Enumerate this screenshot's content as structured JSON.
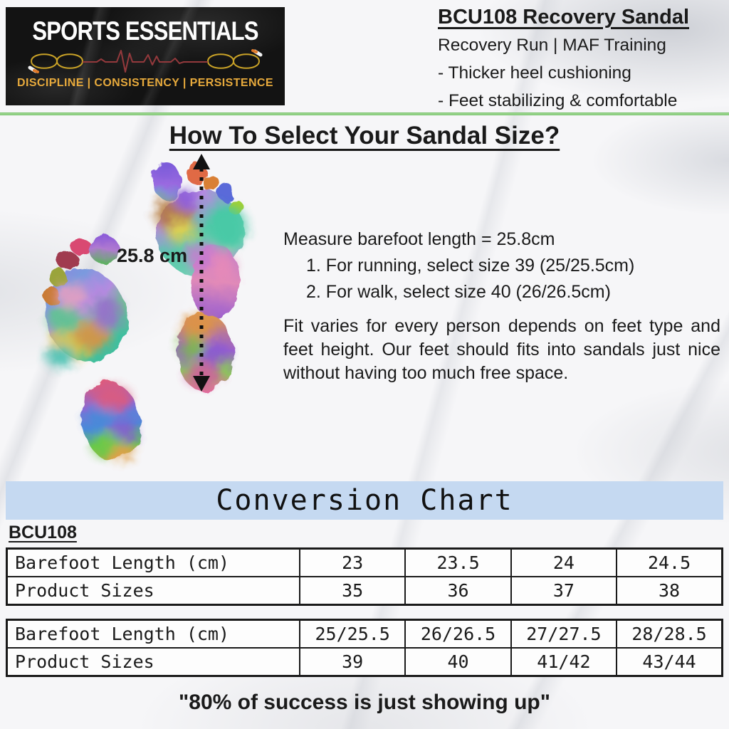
{
  "brand": {
    "name": "SPORTS ESSENTIALS",
    "tagline": "DISCIPLINE | CONSISTENCY | PERSISTENCE"
  },
  "product": {
    "title": "BCU108 Recovery Sandal",
    "subtitle": "Recovery Run | MAF Training",
    "bullets": [
      "- Thicker heel cushioning",
      "- Feet stabilizing & comfortable"
    ]
  },
  "guide": {
    "heading": "How To Select Your Sandal Size?",
    "measurement_label": "25.8 cm",
    "measure_line": "Measure barefoot length = 25.8cm",
    "steps": [
      "1. For running, select size 39 (25/25.5cm)",
      "2. For walk, select size 40 (26/26.5cm)"
    ],
    "note": "Fit varies for every person depends on feet type and feet height. Our feet should fits into sandals just nice without having too much free space."
  },
  "conversion": {
    "title": "Conversion Chart",
    "model": "BCU108",
    "tables": [
      {
        "rows": [
          [
            "Barefoot Length (cm)",
            "23",
            "23.5",
            "24",
            "24.5"
          ],
          [
            "Product Sizes",
            "35",
            "36",
            "37",
            "38"
          ]
        ]
      },
      {
        "rows": [
          [
            "Barefoot Length (cm)",
            "25/25.5",
            "26/26.5",
            "27/27.5",
            "28/28.5"
          ],
          [
            "Product Sizes",
            "39",
            "40",
            "41/42",
            "43/44"
          ]
        ]
      }
    ]
  },
  "footer": {
    "quote": "\"80% of success is just showing up\""
  },
  "icons": {
    "jump_rope_infinity": "gold infinity jump-rope loops",
    "heartbeat": "red ecg zigzag line",
    "measure_arrow": "black vertical dotted double-headed arrow"
  },
  "colors": {
    "divider_green": "#7cc576",
    "band_blue": "#c5d9f1",
    "brand_gold": "#e6a93c",
    "heartbeat_red": "#93393c",
    "rope_gold": "#c9a227",
    "text_black": "#1a1a1a"
  }
}
